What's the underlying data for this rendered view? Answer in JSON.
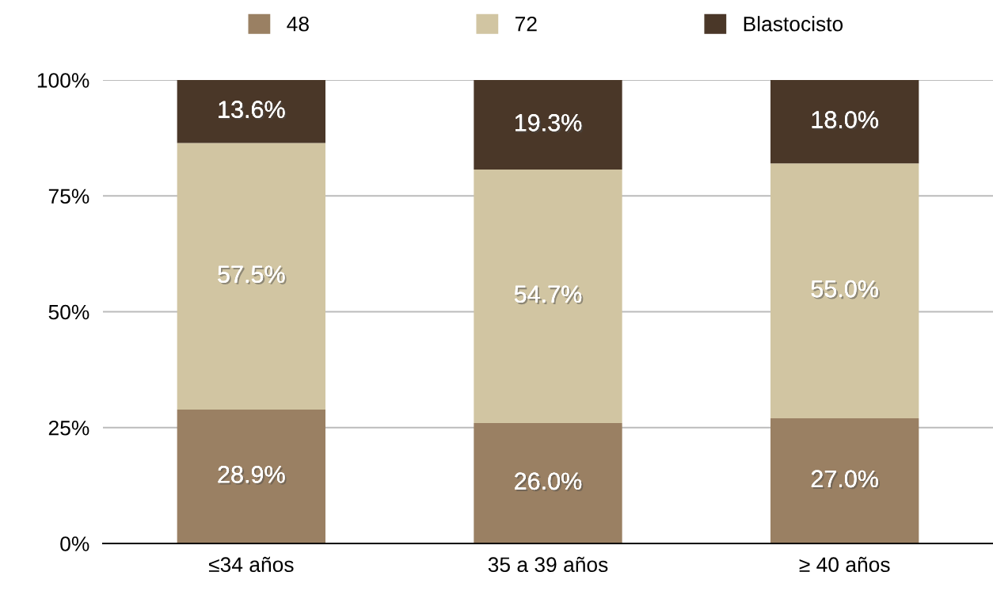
{
  "chart_data": {
    "type": "bar",
    "stacked": true,
    "categories": [
      "≤34 años",
      "35 a 39 años",
      "≥ 40 años"
    ],
    "series": [
      {
        "name": "48",
        "color": "#9a8063",
        "values": [
          28.9,
          26.0,
          27.0
        ],
        "value_labels": [
          "28.9%",
          "26.0%",
          "27.0%"
        ]
      },
      {
        "name": "72",
        "color": "#d1c5a2",
        "values": [
          57.5,
          54.7,
          55.0
        ],
        "value_labels": [
          "57.5%",
          "54.7%",
          "55.0%"
        ]
      },
      {
        "name": "Blastocisto",
        "color": "#4a3728",
        "values": [
          13.6,
          19.3,
          18.0
        ],
        "value_labels": [
          "13.6%",
          "19.3%",
          "18.0%"
        ]
      }
    ],
    "ylim": [
      0,
      100
    ],
    "yticks": [
      {
        "value": 0,
        "label": "0%"
      },
      {
        "value": 25,
        "label": "25%"
      },
      {
        "value": 50,
        "label": "50%"
      },
      {
        "value": 75,
        "label": "75%"
      },
      {
        "value": 100,
        "label": "100%"
      }
    ],
    "grid": "y",
    "legend": "top"
  }
}
